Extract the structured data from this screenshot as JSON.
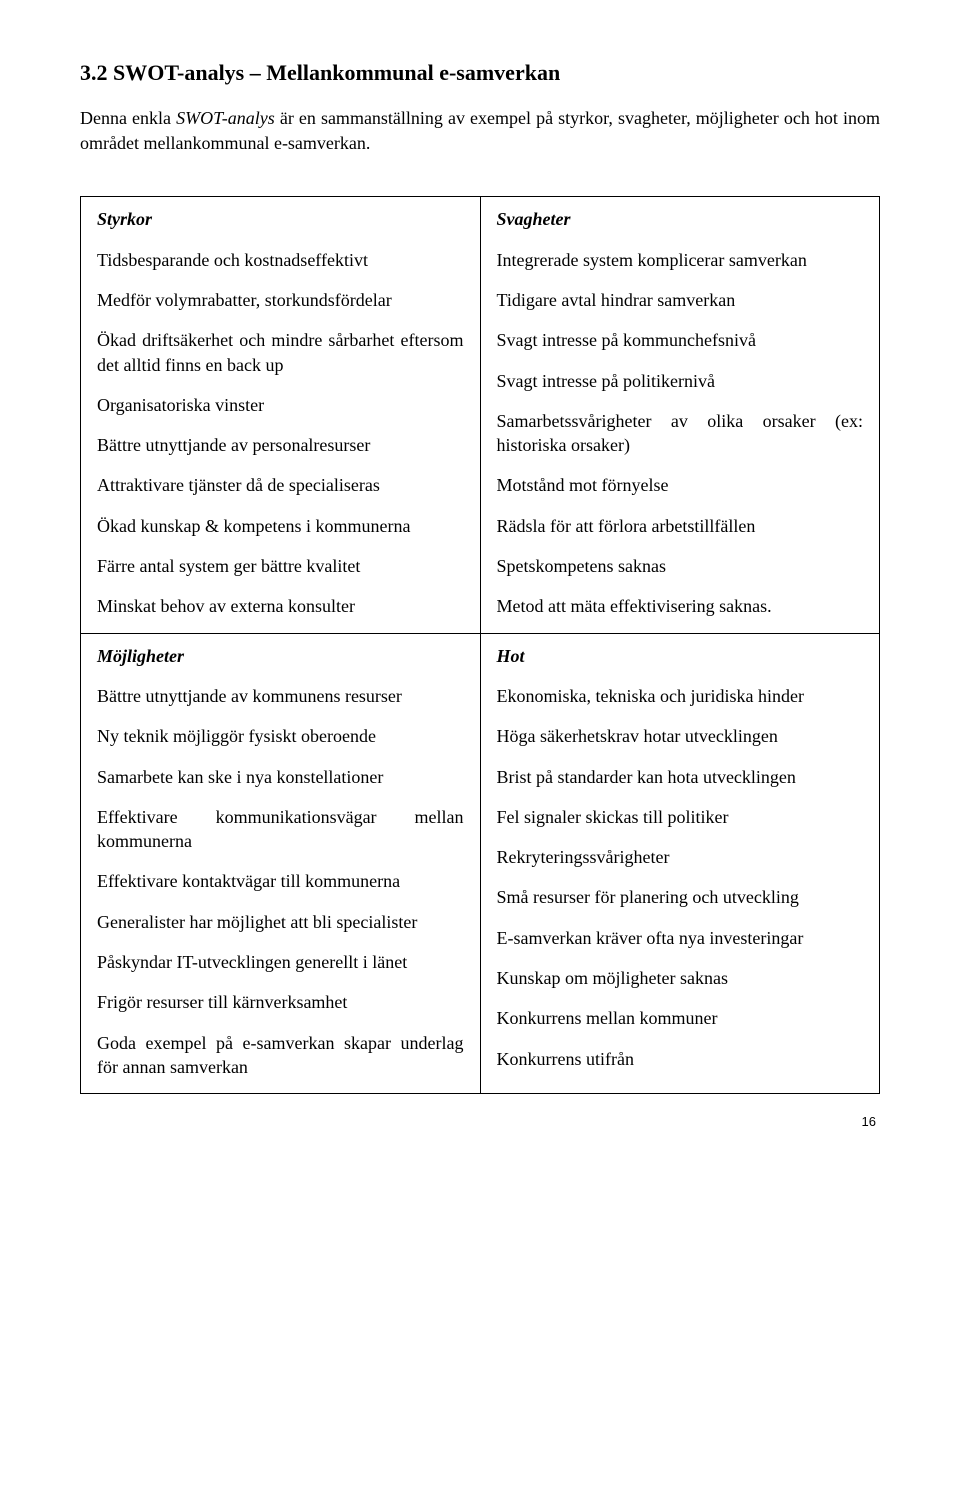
{
  "heading": "3.2 SWOT-analys – Mellankommunal e-samverkan",
  "intro_prefix": "Denna enkla ",
  "intro_italic": "SWOT-analys",
  "intro_suffix": " är en sammanställning av exempel på styrkor, svagheter, möjligheter och hot inom området mellankommunal e-samverkan.",
  "quadrants": {
    "strengths": {
      "title": "Styrkor",
      "items": [
        "Tidsbesparande och kostnadseffektivt",
        "Medför volymrabatter, storkundsfördelar",
        "Ökad driftsäkerhet och mindre sårbarhet eftersom det alltid finns en back up",
        "Organisatoriska vinster",
        "Bättre utnyttjande av personalresurser",
        "Attraktivare tjänster då de specialiseras",
        "Ökad kunskap & kompetens i kommunerna",
        "Färre antal system ger bättre kvalitet",
        "Minskat behov av externa konsulter"
      ]
    },
    "weaknesses": {
      "title": "Svagheter",
      "items": [
        "Integrerade system komplicerar samverkan",
        "Tidigare avtal hindrar samverkan",
        "Svagt intresse på kommunchefsnivå",
        "Svagt intresse på politikernivå",
        "Samarbetssvårigheter av olika orsaker (ex: historiska orsaker)",
        "Motstånd mot förnyelse",
        "Rädsla för att förlora arbetstillfällen",
        "Spetskompetens saknas",
        "Metod att mäta effektivisering saknas."
      ]
    },
    "opportunities": {
      "title": "Möjligheter",
      "items": [
        "Bättre utnyttjande av kommunens resurser",
        "Ny teknik möjliggör fysiskt oberoende",
        "Samarbete kan ske i nya konstellationer",
        "Effektivare kommunikationsvägar mellan kommunerna",
        "Effektivare kontaktvägar till kommunerna",
        "Generalister har möjlighet att bli specialister",
        "Påskyndar IT-utvecklingen generellt i länet",
        "Frigör resurser till kärnverksamhet",
        "Goda exempel på e-samverkan skapar underlag för annan samverkan"
      ]
    },
    "threats": {
      "title": "Hot",
      "items": [
        "Ekonomiska, tekniska och juridiska hinder",
        "Höga säkerhetskrav hotar utvecklingen",
        "Brist på standarder kan hota utvecklingen",
        "Fel signaler skickas till politiker",
        "Rekryteringssvårigheter",
        "Små resurser för planering och utveckling",
        "E-samverkan kräver ofta nya investeringar",
        "Kunskap om möjligheter saknas",
        "Konkurrens mellan kommuner",
        "Konkurrens utifrån"
      ]
    }
  },
  "page_number": "16"
}
